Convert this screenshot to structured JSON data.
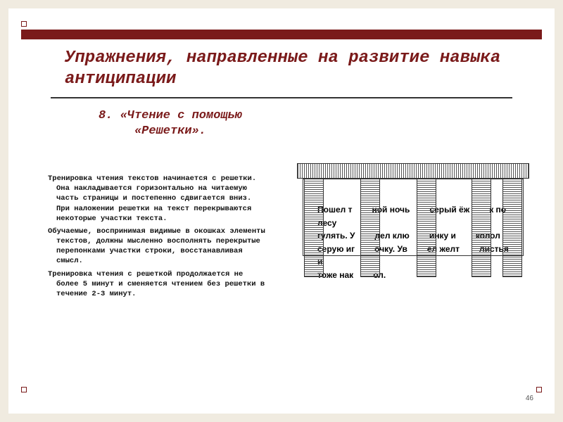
{
  "colors": {
    "background": "#f0ebe0",
    "slide_bg": "#ffffff",
    "accent": "#7a1a1a",
    "text": "#111111"
  },
  "typography": {
    "title_fontsize_pt": 18,
    "subtitle_fontsize_pt": 13,
    "body_fontsize_pt": 8,
    "font_family": "Courier New"
  },
  "title": "Упражнения, направленные на развитие навыка антиципации",
  "subtitle": "8. «Чтение с помощью «Решетки».",
  "paragraphs": [
    "Тренировка чтения текстов начинается с решетки. Она накладывается горизонтально на читаемую часть страницы и постепенно сдвигается вниз. При наложении решетки на текст перекрываются некоторые участки текста.",
    "Обучаемые, воспринимая видимые в окошках элементы текстов, должны мысленно восполнять перекрытые перепонками участки строки, восстанавливая смысл.",
    "Тренировка чтения с решеткой продолжается не более 5 минут и сменяется чтением без решетки в течение 2-3 минут."
  ],
  "page_number": "46",
  "illustration": {
    "type": "infographic",
    "bars_count": 5,
    "bar_color": "#555555",
    "top_rail_color": "#555555",
    "paper_bg": "#ffffff",
    "lines": [
      [
        "Пошел т",
        "ной ночь",
        "серый ёж",
        "к по лесу"
      ],
      [
        "гулять. У",
        "дел клю",
        "инку и",
        "колол"
      ],
      [
        "серую иг",
        "очку. Ув",
        "ел желт",
        "листья и"
      ],
      [
        "тоже нак",
        "ол.",
        "",
        ""
      ]
    ]
  }
}
